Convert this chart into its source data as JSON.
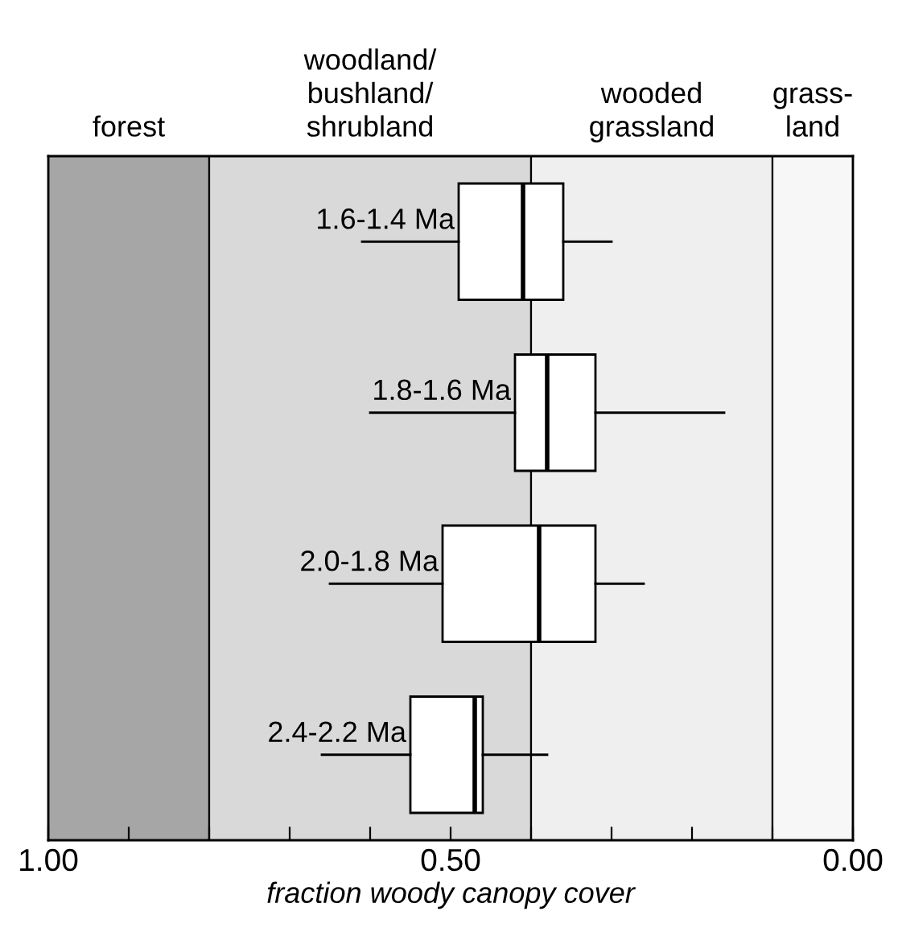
{
  "chart_data": {
    "type": "box",
    "orientation": "horizontal",
    "xlabel": "fraction woody canopy cover",
    "categories": [
      "1.6-1.4 Ma",
      "1.8-1.6 Ma",
      "2.0-1.8 Ma",
      "2.4-2.2 Ma"
    ],
    "boxes": [
      {
        "low": 0.3,
        "q1": 0.36,
        "median": 0.41,
        "q3": 0.49,
        "high": 0.61
      },
      {
        "low": 0.16,
        "q1": 0.32,
        "median": 0.38,
        "q3": 0.42,
        "high": 0.6
      },
      {
        "low": 0.26,
        "q1": 0.32,
        "median": 0.39,
        "q3": 0.51,
        "high": 0.65
      },
      {
        "low": 0.38,
        "q1": 0.46,
        "median": 0.47,
        "q3": 0.55,
        "high": 0.66
      }
    ],
    "xlim": [
      1.0,
      0.0
    ],
    "xticks": [
      {
        "value": 1.0,
        "label": "1.00"
      },
      {
        "value": 0.9,
        "label": null
      },
      {
        "value": 0.8,
        "label": null
      },
      {
        "value": 0.7,
        "label": null
      },
      {
        "value": 0.6,
        "label": null
      },
      {
        "value": 0.5,
        "label": "0.50"
      },
      {
        "value": 0.4,
        "label": null
      },
      {
        "value": 0.3,
        "label": null
      },
      {
        "value": 0.2,
        "label": null
      },
      {
        "value": 0.1,
        "label": null
      },
      {
        "value": 0.0,
        "label": "0.00"
      }
    ],
    "bands": [
      {
        "axis": "x",
        "from": 1.0,
        "to": 0.8,
        "label": "forest",
        "color": "#a6a6a6"
      },
      {
        "axis": "x",
        "from": 0.8,
        "to": 0.4,
        "label": "woodland/\nbushland/\nshrubland",
        "color": "#d9d9d9"
      },
      {
        "axis": "x",
        "from": 0.4,
        "to": 0.1,
        "label": "wooded\ngrassland",
        "color": "#efefef"
      },
      {
        "axis": "x",
        "from": 0.1,
        "to": 0.0,
        "label": "grass-\nland",
        "color": "#f7f7f7"
      }
    ],
    "grid": false,
    "legend": false
  }
}
